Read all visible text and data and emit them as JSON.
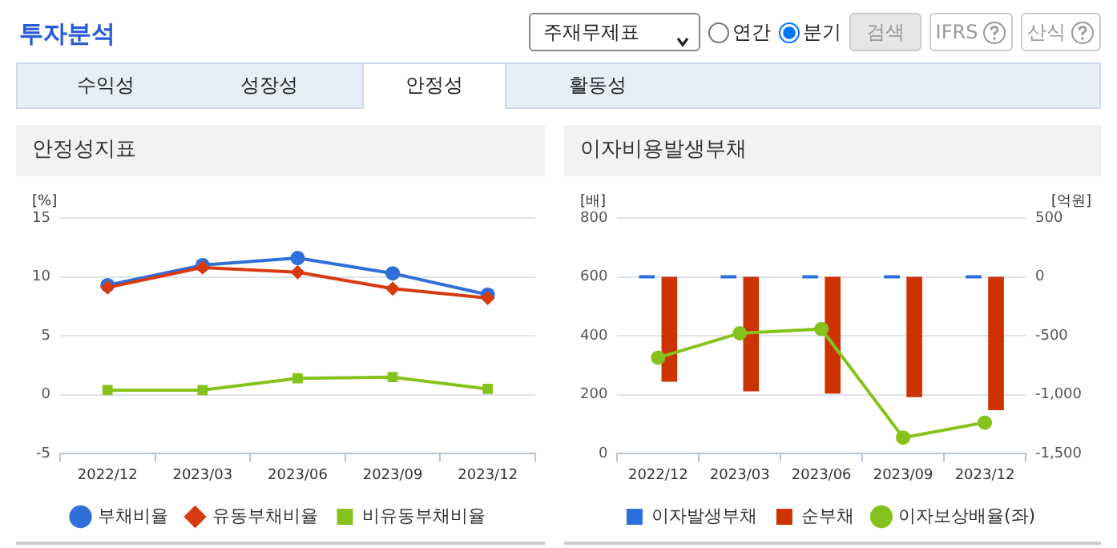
{
  "chart_data": [
    {
      "type": "other",
      "title": "투자분석",
      "annotations": [
        "주재무제표",
        "연간",
        "분기",
        "검색",
        "IFRS",
        "산식",
        "수익성",
        "성장성",
        "안정성",
        "활동성"
      ]
    },
    {
      "type": "line",
      "title": "안정성지표",
      "ylabel": "[%]",
      "categories": [
        "2022/12",
        "2023/03",
        "2023/06",
        "2023/09",
        "2023/12"
      ],
      "ylim": [
        -5,
        15
      ],
      "yticks": [
        -5,
        0,
        5,
        10,
        15
      ],
      "grid": "y",
      "legend": "bottom",
      "series": [
        {
          "name": "부채비율",
          "color": "#2f6fd8",
          "marker": "circle",
          "values": [
            9.3,
            11.0,
            11.6,
            10.3,
            8.5
          ]
        },
        {
          "name": "유동부채비율",
          "color": "#d83a10",
          "marker": "diamond",
          "values": [
            9.1,
            10.8,
            10.4,
            9.0,
            8.2
          ]
        },
        {
          "name": "비유동부채비율",
          "color": "#86c21c",
          "marker": "square",
          "values": [
            0.4,
            0.4,
            1.4,
            1.5,
            0.5
          ]
        }
      ]
    },
    {
      "type": "bar",
      "title": "이자비용발생부채",
      "ylabel": "[배]",
      "y2label": "[억원]",
      "categories": [
        "2022/12",
        "2023/03",
        "2023/06",
        "2023/09",
        "2023/12"
      ],
      "ylim": [
        0,
        800
      ],
      "yticks": [
        0,
        200,
        400,
        600,
        800
      ],
      "y2lim": [
        -1500,
        500
      ],
      "y2ticks": [
        {
          "value": -1500,
          "label": "-1,500"
        },
        {
          "value": -1000,
          "label": "-1,000"
        },
        -500,
        0,
        500
      ],
      "grid": "y",
      "legend": "bottom",
      "series": [
        {
          "name": "이자발생부채",
          "color": "#2a6fdb",
          "axis": "y2",
          "values": [
            0,
            0,
            0,
            0,
            0
          ]
        },
        {
          "name": "순부채",
          "color": "#cc3300",
          "axis": "y2",
          "values": [
            -890,
            -970,
            -990,
            -1020,
            -1130
          ]
        },
        {
          "name": "이자보상배율(좌)",
          "type": "line",
          "color": "#86c21c",
          "marker": "circle",
          "axis": "y",
          "values": [
            326,
            409,
            423,
            55,
            106
          ]
        }
      ]
    }
  ]
}
